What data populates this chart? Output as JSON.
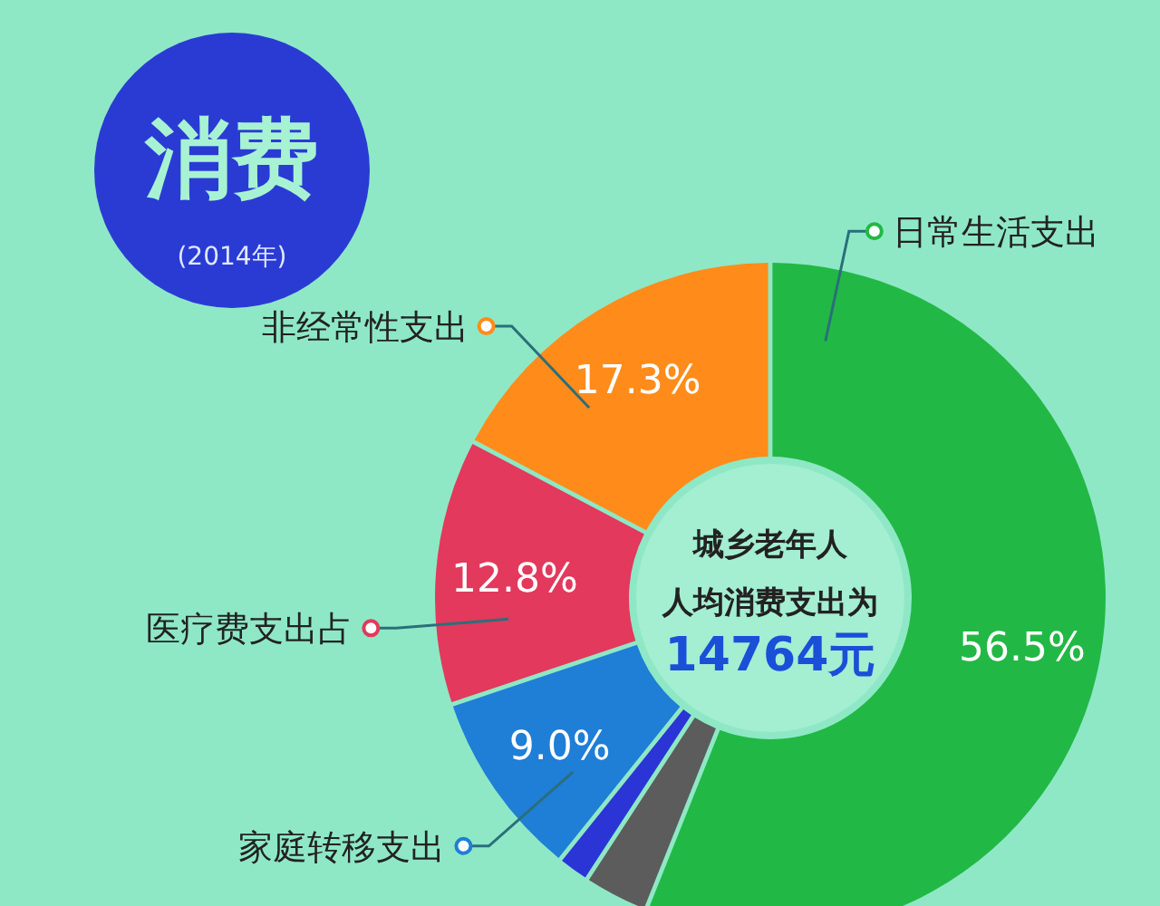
{
  "chart_data": {
    "type": "donut",
    "title": "消费",
    "subtitle": "(2014年)",
    "categories": [
      "日常生活支出",
      null,
      null,
      "家庭转移支出",
      "医疗费支出占",
      "非经常性支出"
    ],
    "values": [
      56.5,
      3.0,
      1.4,
      9.0,
      12.8,
      17.3
    ],
    "colors": [
      "#22b845",
      "#5c5c5c",
      "#2b35d6",
      "#1f7ed6",
      "#e2395c",
      "#ff8c1a"
    ],
    "value_labels": [
      "56.5%",
      null,
      null,
      "9.0%",
      "12.8%",
      "17.3%"
    ],
    "annotations": [
      "城乡老年人",
      "人均消费支出为",
      "14764元"
    ],
    "legend": false
  }
}
